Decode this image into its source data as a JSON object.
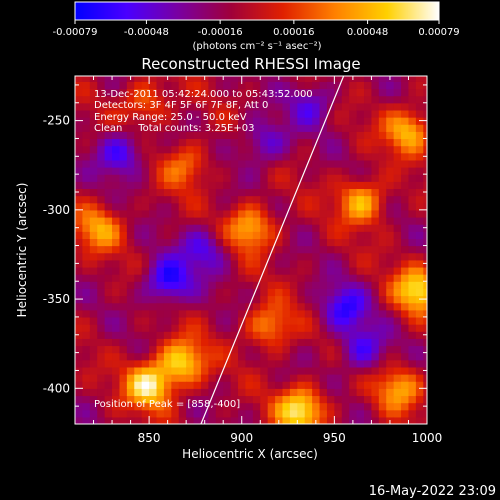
{
  "chart_data": {
    "type": "heatmap",
    "title": "Reconstructed RHESSI Image",
    "xlabel": "Heliocentric X (arcsec)",
    "ylabel": "Heliocentric Y (arcsec)",
    "xlim": [
      810,
      1000
    ],
    "ylim": [
      -420,
      -225
    ],
    "x_ticks": [
      "850",
      "900",
      "950",
      "1000"
    ],
    "y_ticks": [
      "-250",
      "-300",
      "-350",
      "-400"
    ],
    "x_tick_values": [
      850,
      900,
      950,
      1000
    ],
    "y_tick_values": [
      -250,
      -300,
      -350,
      -400
    ],
    "colorbar": {
      "ticks": [
        "-0.00079",
        "-0.00048",
        "-0.00016",
        "0.00016",
        "0.00048",
        "0.00079"
      ],
      "tick_values": [
        -0.00079,
        -0.00048,
        -0.00016,
        0.00016,
        0.00048,
        0.00079
      ],
      "range": [
        -0.00079,
        0.00079
      ],
      "colors": [
        "#0000ff",
        "#4a00ff",
        "#7a00a0",
        "#a0003a",
        "#e02000",
        "#ff8000",
        "#ffd000",
        "#ffffff"
      ]
    },
    "info": {
      "time": "13-Dec-2011 05:42:24.000 to 05:43:52.000",
      "detectors": "Detectors: 3F 4F 5F 6F 7F 8F, Att 0",
      "energy": "Energy Range: 25.0 - 50.0 keV",
      "clean": "Clean     Total counts: 3.25E+03"
    },
    "peak_label": "Position of Peak = [858,-400]",
    "limb": [
      [
        955,
        -225
      ],
      [
        878,
        -420
      ]
    ],
    "hot_spots": [
      {
        "x": 850,
        "y": -398,
        "value": 0.00079
      },
      {
        "x": 868,
        "y": -385,
        "value": 0.0007
      },
      {
        "x": 932,
        "y": -412,
        "value": 0.00079
      },
      {
        "x": 995,
        "y": -345,
        "value": 0.00072
      },
      {
        "x": 990,
        "y": -255,
        "value": 0.0006
      },
      {
        "x": 905,
        "y": -310,
        "value": 0.0006
      },
      {
        "x": 823,
        "y": -310,
        "value": 0.0005
      },
      {
        "x": 848,
        "y": -240,
        "value": 0.0004
      },
      {
        "x": 965,
        "y": -295,
        "value": 0.0006
      },
      {
        "x": 915,
        "y": -365,
        "value": 0.0005
      },
      {
        "x": 870,
        "y": -275,
        "value": 0.0004
      },
      {
        "x": 985,
        "y": -400,
        "value": 0.0005
      }
    ],
    "cold_spots": [
      {
        "x": 835,
        "y": -268,
        "value": -0.0005
      },
      {
        "x": 860,
        "y": -340,
        "value": -0.0006
      },
      {
        "x": 880,
        "y": -322,
        "value": -0.0004
      },
      {
        "x": 912,
        "y": -262,
        "value": -0.0004
      },
      {
        "x": 955,
        "y": -355,
        "value": -0.0005
      },
      {
        "x": 965,
        "y": -378,
        "value": -0.00045
      },
      {
        "x": 938,
        "y": -240,
        "value": -0.00035
      }
    ]
  },
  "footer": {
    "units": "(photons cm⁻² s⁻¹ asec⁻²)",
    "timestamp": "16-May-2022 23:09"
  }
}
